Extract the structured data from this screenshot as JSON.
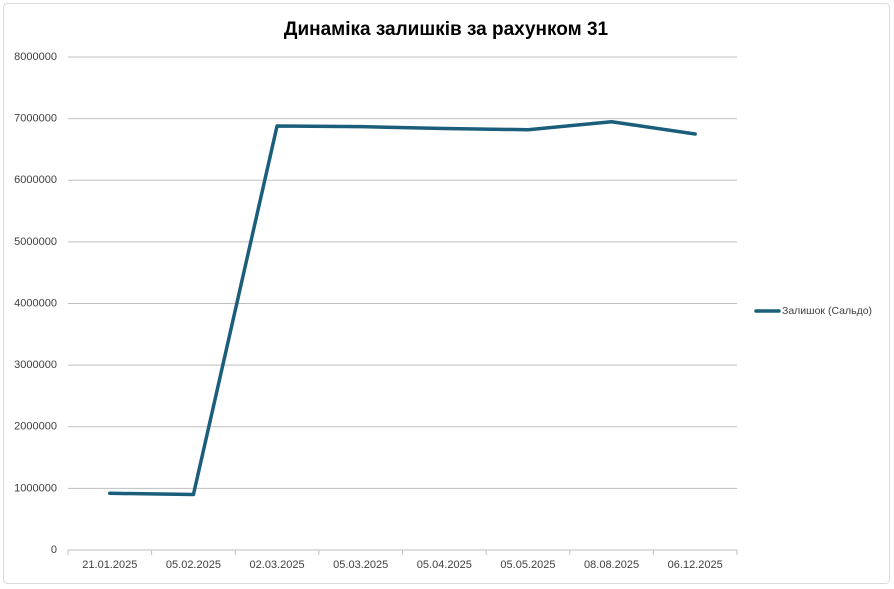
{
  "chart_data": {
    "type": "line",
    "title": "Динаміка залишків за рахунком 31",
    "categories": [
      "21.01.2025",
      "05.02.2025",
      "02.03.2025",
      "05.03.2025",
      "05.04.2025",
      "05.05.2025",
      "08.08.2025",
      "06.12.2025"
    ],
    "series": [
      {
        "name": "Залишок (Сальдо)",
        "color": "#1b5e7b",
        "values": [
          920000,
          900000,
          6880000,
          6870000,
          6840000,
          6820000,
          6950000,
          6750000
        ]
      }
    ],
    "ylim": [
      0,
      8000000
    ],
    "yticks": [
      0,
      1000000,
      2000000,
      3000000,
      4000000,
      5000000,
      6000000,
      7000000,
      8000000
    ],
    "grid": true,
    "legend": "right"
  }
}
